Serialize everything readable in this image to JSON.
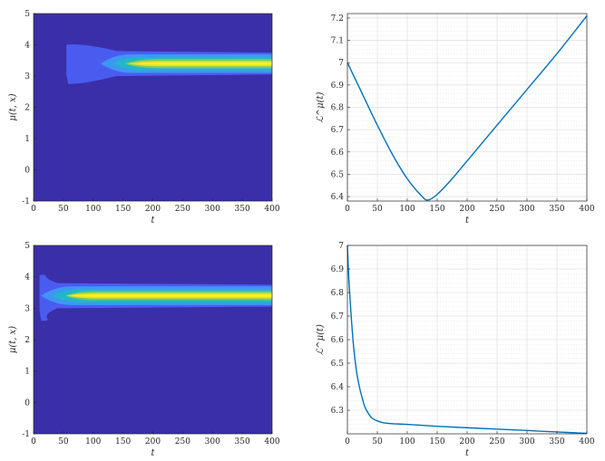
{
  "colors": {
    "background_contour": "#3a2fa8",
    "contour_level_1": "#4a5cf0",
    "contour_level_2": "#3f96f4",
    "contour_level_3": "#1fb8c8",
    "contour_level_4": "#6fcc6a",
    "contour_level_5": "#e6d83a",
    "contour_peak": "#f8f418",
    "line": "#0072bd",
    "grid": "#d9d9d9",
    "axis": "#262626"
  },
  "chart_data": [
    {
      "id": "top-left",
      "type": "heatmap",
      "xlabel": "t",
      "ylabel": "μ(t, x)",
      "xlim": [
        0,
        400
      ],
      "ylim": [
        -1,
        5
      ],
      "xticks": [
        "0",
        "50",
        "100",
        "150",
        "200",
        "250",
        "300",
        "350",
        "400"
      ],
      "yticks": [
        "-1",
        "0",
        "1",
        "2",
        "3",
        "4",
        "5"
      ],
      "band_center": 3.4,
      "band_onset_t": 55,
      "band_converged_t": 175,
      "spread_region": {
        "t_start": 55,
        "t_end": 140,
        "x_low": 2.75,
        "x_high": 4.0
      }
    },
    {
      "id": "top-right",
      "type": "line",
      "xlabel": "t",
      "ylabel": "ℒ^μ(t)",
      "xlim": [
        0,
        400
      ],
      "ylim": [
        6.38,
        7.22
      ],
      "xticks": [
        "0",
        "50",
        "100",
        "150",
        "200",
        "250",
        "300",
        "350",
        "400"
      ],
      "yticks": [
        "6.4",
        "6.5",
        "6.6",
        "6.7",
        "6.8",
        "6.9",
        "7",
        "7.1",
        "7.2"
      ],
      "grid": true,
      "x": [
        0,
        25,
        50,
        75,
        100,
        125,
        135,
        150,
        175,
        200,
        250,
        300,
        350,
        400
      ],
      "y": [
        7.0,
        6.86,
        6.72,
        6.59,
        6.48,
        6.4,
        6.385,
        6.41,
        6.48,
        6.56,
        6.72,
        6.88,
        7.04,
        7.21
      ]
    },
    {
      "id": "bottom-left",
      "type": "heatmap",
      "xlabel": "t",
      "ylabel": "μ(t, x)",
      "xlim": [
        0,
        400
      ],
      "ylim": [
        -1,
        5
      ],
      "xticks": [
        "0",
        "50",
        "100",
        "150",
        "200",
        "250",
        "300",
        "350",
        "400"
      ],
      "yticks": [
        "-1",
        "0",
        "1",
        "2",
        "3",
        "4",
        "5"
      ],
      "band_center": 3.4,
      "band_onset_t": 10,
      "band_converged_t": 70,
      "spread_region": {
        "t_start": 10,
        "t_end": 40,
        "x_low": 2.6,
        "x_high": 4.05
      }
    },
    {
      "id": "bottom-right",
      "type": "line",
      "xlabel": "t",
      "ylabel": "ℒ^μ(t)",
      "xlim": [
        0,
        400
      ],
      "ylim": [
        6.2,
        7.0
      ],
      "xticks": [
        "0",
        "50",
        "100",
        "150",
        "200",
        "250",
        "300",
        "350",
        "400"
      ],
      "yticks": [
        "6.3",
        "6.4",
        "6.5",
        "6.6",
        "6.7",
        "6.8",
        "6.9",
        "7"
      ],
      "grid": true,
      "x": [
        0,
        2,
        5,
        10,
        15,
        20,
        25,
        30,
        40,
        50,
        60,
        75,
        100,
        150,
        200,
        250,
        300,
        350,
        400
      ],
      "y": [
        7.0,
        6.88,
        6.75,
        6.58,
        6.47,
        6.4,
        6.35,
        6.31,
        6.27,
        6.255,
        6.247,
        6.243,
        6.24,
        6.232,
        6.226,
        6.22,
        6.214,
        6.208,
        6.202
      ]
    }
  ]
}
